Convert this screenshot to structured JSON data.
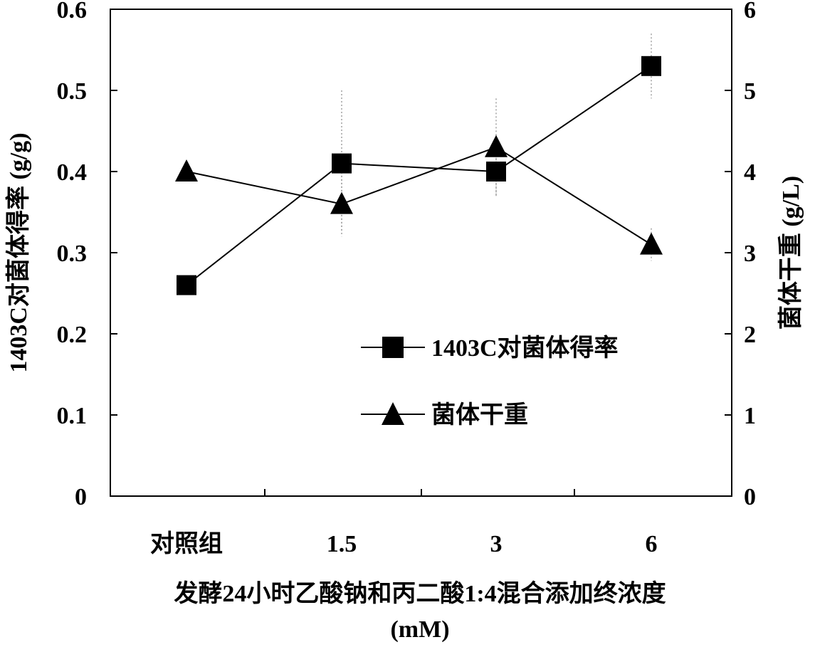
{
  "chart_data": {
    "type": "line",
    "categories": [
      "对照组",
      "1.5",
      "3",
      "6"
    ],
    "xlabel_line1": "发酵24小时乙酸钠和丙二酸1:4混合添加终浓度",
    "xlabel_line2": "(mM)",
    "ylabel_left": "1403C对菌体得率 (g/g)",
    "ylabel_right": "菌体干重 (g/L)",
    "ylim_left": [
      0,
      0.6
    ],
    "yticks_left": [
      "0",
      "0.1",
      "0.2",
      "0.3",
      "0.4",
      "0.5",
      "0.6"
    ],
    "ylim_right": [
      0,
      6
    ],
    "yticks_right": [
      "0",
      "1",
      "2",
      "3",
      "4",
      "5",
      "6"
    ],
    "grid": false,
    "legend_position": "center-right",
    "series": [
      {
        "name": "1403C对菌体得率",
        "axis": "left",
        "marker": "square",
        "values": [
          0.26,
          0.41,
          0.4,
          0.53
        ],
        "errors": [
          0.0,
          0.09,
          0.03,
          0.04
        ]
      },
      {
        "name": "菌体干重",
        "axis": "right",
        "marker": "triangle",
        "values": [
          4.0,
          3.6,
          4.3,
          3.1
        ],
        "errors": [
          0.0,
          0.35,
          0.6,
          0.2
        ]
      }
    ],
    "colors": {
      "line": "#000000",
      "marker": "#000000",
      "error": "#888888"
    }
  }
}
